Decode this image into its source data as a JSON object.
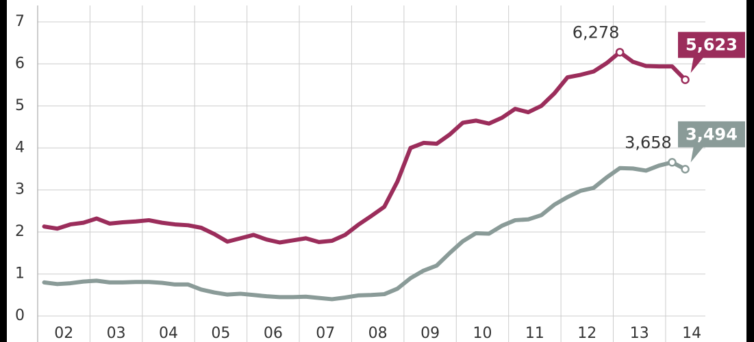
{
  "chart_data": {
    "type": "line",
    "x": [
      2002.125,
      2002.375,
      2002.625,
      2002.875,
      2003.125,
      2003.375,
      2003.625,
      2003.875,
      2004.125,
      2004.375,
      2004.625,
      2004.875,
      2005.125,
      2005.375,
      2005.625,
      2005.875,
      2006.125,
      2006.375,
      2006.625,
      2006.875,
      2007.125,
      2007.375,
      2007.625,
      2007.875,
      2008.125,
      2008.375,
      2008.625,
      2008.875,
      2009.125,
      2009.375,
      2009.625,
      2009.875,
      2010.125,
      2010.375,
      2010.625,
      2010.875,
      2011.125,
      2011.375,
      2011.625,
      2011.875,
      2012.125,
      2012.375,
      2012.625,
      2012.875,
      2013.125,
      2013.375,
      2013.625,
      2013.875,
      2014.125,
      2014.375
    ],
    "series": [
      {
        "color": "#9b2d5b",
        "values": [
          2.13,
          2.08,
          2.18,
          2.22,
          2.32,
          2.2,
          2.23,
          2.25,
          2.28,
          2.22,
          2.18,
          2.16,
          2.1,
          1.95,
          1.77,
          1.85,
          1.93,
          1.82,
          1.75,
          1.8,
          1.85,
          1.76,
          1.79,
          1.93,
          2.17,
          2.38,
          2.6,
          3.2,
          4.0,
          4.12,
          4.1,
          4.32,
          4.6,
          4.65,
          4.58,
          4.72,
          4.93,
          4.85,
          5.0,
          5.3,
          5.68,
          5.74,
          5.82,
          6.02,
          6.278,
          6.05,
          5.95,
          5.94,
          5.94,
          5.623
        ]
      },
      {
        "color": "#8a9b98",
        "values": [
          0.8,
          0.76,
          0.78,
          0.82,
          0.84,
          0.8,
          0.8,
          0.81,
          0.81,
          0.79,
          0.75,
          0.75,
          0.63,
          0.56,
          0.51,
          0.53,
          0.5,
          0.47,
          0.45,
          0.45,
          0.46,
          0.43,
          0.4,
          0.44,
          0.49,
          0.5,
          0.52,
          0.65,
          0.9,
          1.08,
          1.2,
          1.5,
          1.78,
          1.97,
          1.96,
          2.15,
          2.28,
          2.3,
          2.4,
          2.65,
          2.83,
          2.98,
          3.05,
          3.3,
          3.52,
          3.51,
          3.46,
          3.58,
          3.658,
          3.494
        ]
      }
    ],
    "annotations": [
      {
        "series": 0,
        "index": 44,
        "label": "6,278",
        "style": "plain"
      },
      {
        "series": 1,
        "index": 48,
        "label": "3,658",
        "style": "plain"
      },
      {
        "series": 0,
        "index": 49,
        "label": "5,623",
        "style": "box"
      },
      {
        "series": 1,
        "index": 49,
        "label": "3,494",
        "style": "box"
      }
    ],
    "xlim": [
      2002,
      2014.76
    ],
    "xticks": [
      {
        "value": 2002.5,
        "label": "02"
      },
      {
        "value": 2003.5,
        "label": "03"
      },
      {
        "value": 2004.5,
        "label": "04"
      },
      {
        "value": 2005.5,
        "label": "05"
      },
      {
        "value": 2006.5,
        "label": "06"
      },
      {
        "value": 2007.5,
        "label": "07"
      },
      {
        "value": 2008.5,
        "label": "08"
      },
      {
        "value": 2009.5,
        "label": "09"
      },
      {
        "value": 2010.5,
        "label": "10"
      },
      {
        "value": 2011.5,
        "label": "11"
      },
      {
        "value": 2012.5,
        "label": "12"
      },
      {
        "value": 2013.5,
        "label": "13"
      },
      {
        "value": 2014.5,
        "label": "14"
      }
    ],
    "ylim": [
      0,
      7
    ],
    "yticks": [
      0,
      1,
      2,
      3,
      4,
      5,
      6,
      7
    ],
    "grid": true
  }
}
